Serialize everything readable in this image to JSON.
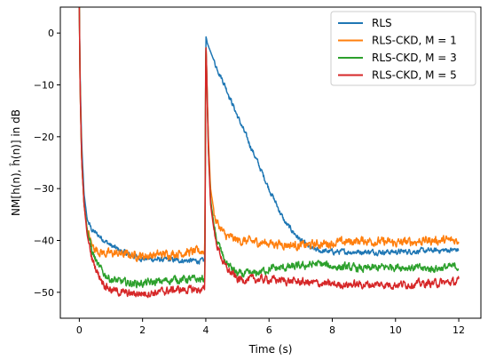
{
  "chart_data": {
    "type": "line",
    "title": "",
    "xlabel": "Time (s)",
    "ylabel": "NM[h(n), ĥ(n)] in dB",
    "xlim": [
      -0.6,
      12.7
    ],
    "ylim": [
      -55,
      5
    ],
    "xticks": [
      "0",
      "2",
      "4",
      "6",
      "8",
      "10",
      "12"
    ],
    "yticks": [
      "0",
      "−10",
      "−20",
      "−30",
      "−40",
      "−50"
    ],
    "grid": false,
    "legend_position": "top-right",
    "series": [
      {
        "name": "RLS",
        "color": "#1f77b4",
        "x": [
          0,
          0.03,
          0.08,
          0.15,
          0.25,
          0.4,
          0.6,
          0.8,
          1.0,
          1.3,
          1.6,
          2.0,
          2.5,
          3.0,
          3.5,
          3.97,
          4.0,
          4.05,
          4.3,
          4.6,
          5.0,
          5.5,
          6.0,
          6.5,
          7.0,
          7.3,
          7.6,
          8.0,
          9.0,
          10.0,
          11.0,
          12.0
        ],
        "y": [
          5,
          -10,
          -22,
          -31,
          -36,
          -38,
          -39,
          -40,
          -41,
          -42,
          -42.8,
          -43.5,
          -43.7,
          -43.8,
          -43.9,
          -44,
          -0.5,
          -2,
          -6,
          -10,
          -16,
          -23,
          -30,
          -36.5,
          -40,
          -41.5,
          -42,
          -42.2,
          -42.2,
          -42.2,
          -42,
          -41.8
        ],
        "noise": 0.6
      },
      {
        "name": "RLS-CKD, M = 1",
        "color": "#ff7f0e",
        "x": [
          0,
          0.03,
          0.08,
          0.15,
          0.25,
          0.4,
          0.6,
          0.8,
          1.2,
          2.0,
          3.0,
          3.97,
          4.0,
          4.03,
          4.08,
          4.15,
          4.3,
          4.6,
          5.0,
          6.0,
          7.0,
          8.0,
          9.0,
          10.0,
          11.0,
          12.0
        ],
        "y": [
          5,
          -12,
          -25,
          -33,
          -38,
          -41,
          -42,
          -42.5,
          -42.5,
          -43,
          -42.5,
          -42,
          -1,
          -8,
          -20,
          -30,
          -36,
          -39,
          -40,
          -40.5,
          -41,
          -40.5,
          -40,
          -40.5,
          -40,
          -40
        ],
        "noise": 1.0
      },
      {
        "name": "RLS-CKD, M = 3",
        "color": "#2ca02c",
        "x": [
          0,
          0.03,
          0.08,
          0.15,
          0.25,
          0.4,
          0.6,
          0.8,
          1.0,
          1.3,
          1.6,
          2.0,
          2.5,
          3.0,
          3.5,
          3.97,
          4.0,
          4.03,
          4.08,
          4.15,
          4.3,
          4.6,
          5.0,
          5.5,
          6.0,
          7.0,
          7.5,
          8.0,
          9.0,
          10.0,
          11.0,
          12.0
        ],
        "y": [
          5,
          -12,
          -25,
          -33,
          -38,
          -42,
          -45,
          -46.5,
          -47.5,
          -48,
          -48.2,
          -48.3,
          -48,
          -47.5,
          -47.5,
          -47.5,
          -1,
          -8,
          -22,
          -32,
          -39,
          -44,
          -46.5,
          -46.5,
          -45.5,
          -45,
          -44.5,
          -45,
          -45.5,
          -45,
          -45.5,
          -45
        ],
        "noise": 0.9
      },
      {
        "name": "RLS-CKD, M = 5",
        "color": "#d62728",
        "x": [
          0,
          0.03,
          0.08,
          0.15,
          0.25,
          0.4,
          0.6,
          0.8,
          1.0,
          1.3,
          1.6,
          2.0,
          2.5,
          3.0,
          3.5,
          3.97,
          4.0,
          4.03,
          4.08,
          4.15,
          4.3,
          4.6,
          5.0,
          5.5,
          6.0,
          7.0,
          8.0,
          9.0,
          10.0,
          11.0,
          12.0
        ],
        "y": [
          5,
          -12,
          -25,
          -33,
          -39,
          -43.5,
          -46.5,
          -48.5,
          -49.5,
          -50,
          -50.3,
          -50.2,
          -50,
          -49.5,
          -49.5,
          -49.5,
          -1,
          -8,
          -22,
          -33,
          -40,
          -45,
          -47.5,
          -47.5,
          -47.5,
          -48,
          -48.5,
          -48.5,
          -48.5,
          -48.3,
          -48
        ],
        "noise": 0.9
      }
    ]
  }
}
